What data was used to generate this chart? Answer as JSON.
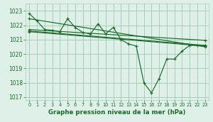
{
  "background_color": "#dff0e8",
  "grid_color": "#a8d0bc",
  "line_color": "#1a6b2a",
  "title": "Graphe pression niveau de la mer (hPa)",
  "xlim": [
    -0.5,
    23.5
  ],
  "ylim": [
    1016.8,
    1023.5
  ],
  "yticks": [
    1017,
    1018,
    1019,
    1020,
    1021,
    1022,
    1023
  ],
  "xticks": [
    0,
    1,
    2,
    3,
    4,
    5,
    6,
    7,
    8,
    9,
    10,
    11,
    12,
    13,
    14,
    15,
    16,
    17,
    18,
    19,
    20,
    21,
    22,
    23
  ],
  "series": [
    {
      "x": [
        0,
        1,
        2,
        3,
        4,
        5,
        6,
        7,
        8,
        9,
        10,
        11,
        12,
        13,
        14,
        15,
        16,
        17,
        18,
        19,
        20,
        21,
        22,
        23
      ],
      "y": [
        1022.8,
        1022.3,
        1021.7,
        1021.65,
        1021.55,
        1022.45,
        1021.85,
        1021.5,
        1021.4,
        1022.1,
        1021.4,
        1021.85,
        1021.0,
        1020.7,
        1020.55,
        1018.0,
        1017.3,
        1018.3,
        1019.65,
        1019.65,
        1020.2,
        1020.6,
        1020.6,
        1020.6
      ]
    },
    {
      "x": [
        0,
        23
      ],
      "y": [
        1022.45,
        1020.5
      ]
    },
    {
      "x": [
        0,
        23
      ],
      "y": [
        1021.7,
        1020.95
      ]
    },
    {
      "x": [
        0,
        23
      ],
      "y": [
        1021.6,
        1020.6
      ]
    },
    {
      "x": [
        0,
        23
      ],
      "y": [
        1021.55,
        1020.55
      ]
    }
  ]
}
